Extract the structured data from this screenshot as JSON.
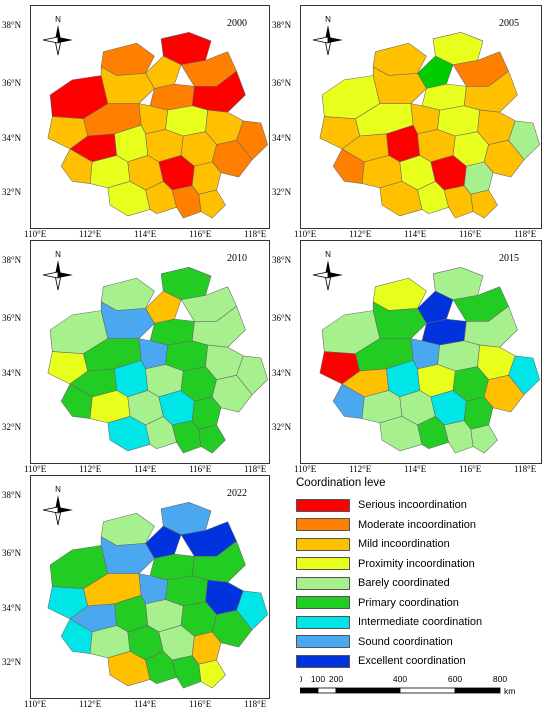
{
  "maps": [
    {
      "year": "2000",
      "colors": [
        "#ff0000",
        "#ff8000",
        "#ffc000",
        "#ff8000",
        "#ff0000",
        "#ffc000",
        "#ff8000",
        "#ff0000",
        "#ffc000",
        "#ff8000",
        "#ffc000",
        "#e8ff1e",
        "#ffc000",
        "#ff8000",
        "#ff0000",
        "#e8ff1e",
        "#ffc000",
        "#ffc000",
        "#ff8000",
        "#ffc000",
        "#e8ff1e",
        "#ffc000",
        "#ff0000",
        "#ffc000",
        "#e8ff1e",
        "#ffc000",
        "#ff8000",
        "#ffc000"
      ]
    },
    {
      "year": "2005",
      "colors": [
        "#e8ff1e",
        "#ffc000",
        "#00cc00",
        "#ff8000",
        "#e8ff1e",
        "#ffc000",
        "#e8ff1e",
        "#ffc000",
        "#ffc000",
        "#e8ff1e",
        "#ffc000",
        "#e8ff1e",
        "#ffc000",
        "#a6f08e",
        "#ffc000",
        "#ff0000",
        "#ffc000",
        "#e8ff1e",
        "#ffc000",
        "#ff8000",
        "#ffc000",
        "#e8ff1e",
        "#ff0000",
        "#a6f08e",
        "#ffc000",
        "#e8ff1e",
        "#ffc000",
        "#ffc000"
      ]
    },
    {
      "year": "2010",
      "colors": [
        "#22cc22",
        "#a6f08e",
        "#ffc000",
        "#a6f08e",
        "#a6f08e",
        "#4aa8f0",
        "#22cc22",
        "#a6f08e",
        "#e8ff1e",
        "#22cc22",
        "#4aa8f0",
        "#22cc22",
        "#a6f08e",
        "#a6f08e",
        "#22cc22",
        "#00e6e6",
        "#a6f08e",
        "#22cc22",
        "#a6f08e",
        "#22cc22",
        "#e8ff1e",
        "#a6f08e",
        "#00e6e6",
        "#22cc22",
        "#00e6e6",
        "#a6f08e",
        "#22cc22",
        "#22cc22"
      ]
    },
    {
      "year": "2015",
      "colors": [
        "#a6f08e",
        "#e8ff1e",
        "#0033dd",
        "#22cc22",
        "#a6f08e",
        "#22cc22",
        "#0033dd",
        "#a6f08e",
        "#ff0000",
        "#22cc22",
        "#4aa8f0",
        "#a6f08e",
        "#e8ff1e",
        "#00e6e6",
        "#ffc000",
        "#00e6e6",
        "#e8ff1e",
        "#22cc22",
        "#ffc000",
        "#4aa8f0",
        "#a6f08e",
        "#a6f08e",
        "#00e6e6",
        "#22cc22",
        "#a6f08e",
        "#22cc22",
        "#a6f08e",
        "#a6f08e"
      ]
    },
    {
      "year": "2022",
      "colors": [
        "#4aa8f0",
        "#a6f08e",
        "#0033dd",
        "#0033dd",
        "#22cc22",
        "#4aa8f0",
        "#22cc22",
        "#22cc22",
        "#00e6e6",
        "#ffc000",
        "#4aa8f0",
        "#22cc22",
        "#0033dd",
        "#00e6e6",
        "#4aa8f0",
        "#22cc22",
        "#a6f08e",
        "#22cc22",
        "#22cc22",
        "#00e6e6",
        "#a6f08e",
        "#22cc22",
        "#a6f08e",
        "#ffc000",
        "#ffc000",
        "#22cc22",
        "#22cc22",
        "#e8ff1e"
      ]
    }
  ],
  "axes": {
    "lat_labels": [
      "38°N",
      "36°N",
      "34°N",
      "32°N"
    ],
    "lon_labels": [
      "110°E",
      "112°E",
      "114°E",
      "116°E",
      "118°E"
    ]
  },
  "north_arrow": {
    "label": "N"
  },
  "legend": {
    "title": "Coordination leve",
    "items": [
      {
        "label": "Serious incoordination",
        "color": "#ff0000"
      },
      {
        "label": "Moderate incoordination",
        "color": "#ff8000"
      },
      {
        "label": "Mild incoordination",
        "color": "#ffc000"
      },
      {
        "label": "Proximity incoordination",
        "color": "#e8ff1e"
      },
      {
        "label": "Barely coordinated",
        "color": "#a6f08e"
      },
      {
        "label": "Primary coordination",
        "color": "#22cc22"
      },
      {
        "label": "Intermediate coordination",
        "color": "#00e6e6"
      },
      {
        "label": "Sound coordination",
        "color": "#4aa8f0"
      },
      {
        "label": "Excellent coordination",
        "color": "#0033dd"
      }
    ]
  },
  "scale_bar": {
    "ticks": [
      "0",
      "100",
      "200",
      "400",
      "600",
      "800"
    ],
    "unit": "km"
  }
}
